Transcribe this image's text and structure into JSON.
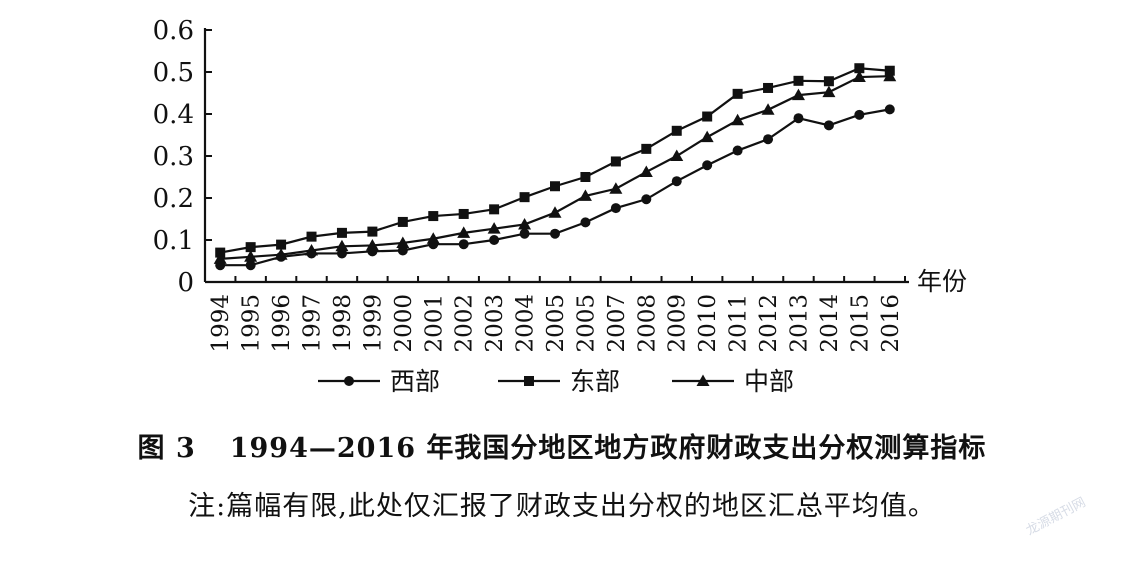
{
  "chart_data": {
    "type": "line",
    "x": [
      "1994",
      "1995",
      "1996",
      "1997",
      "1998",
      "1999",
      "2000",
      "2001",
      "2002",
      "2003",
      "2004",
      "2005",
      "2005",
      "2007",
      "2008",
      "2009",
      "2010",
      "2011",
      "2012",
      "2013",
      "2014",
      "2015",
      "2016"
    ],
    "xlabel": "年份",
    "ylabel": "",
    "ylim": [
      0,
      0.6
    ],
    "yticks": [
      "0",
      "0.1",
      "0.2",
      "0.3",
      "0.4",
      "0.5",
      "0.6"
    ],
    "grid": false,
    "legend_placement": "bottom",
    "series": [
      {
        "name": "西部",
        "marker": "circle",
        "values": [
          0.04,
          0.04,
          0.06,
          0.068,
          0.068,
          0.073,
          0.075,
          0.09,
          0.09,
          0.1,
          0.115,
          0.115,
          0.142,
          0.176,
          0.197,
          0.24,
          0.278,
          0.313,
          0.34,
          0.39,
          0.373,
          0.398,
          0.411
        ]
      },
      {
        "name": "东部",
        "marker": "square",
        "values": [
          0.07,
          0.083,
          0.089,
          0.108,
          0.117,
          0.12,
          0.143,
          0.157,
          0.162,
          0.173,
          0.202,
          0.228,
          0.25,
          0.287,
          0.317,
          0.36,
          0.394,
          0.448,
          0.462,
          0.479,
          0.478,
          0.509,
          0.503
        ]
      },
      {
        "name": "中部",
        "marker": "triangle",
        "values": [
          0.055,
          0.06,
          0.065,
          0.075,
          0.085,
          0.087,
          0.093,
          0.103,
          0.117,
          0.127,
          0.137,
          0.165,
          0.205,
          0.222,
          0.262,
          0.3,
          0.345,
          0.385,
          0.41,
          0.445,
          0.452,
          0.488,
          0.49
        ]
      }
    ]
  },
  "caption": {
    "figure_label": "图 3",
    "figure_title": "1994—2016 年我国分地区地方政府财政支出分权测算指标",
    "note": "注:篇幅有限,此处仅汇报了财政支出分权的地区汇总平均值。"
  },
  "watermark": "龙源期刊网"
}
